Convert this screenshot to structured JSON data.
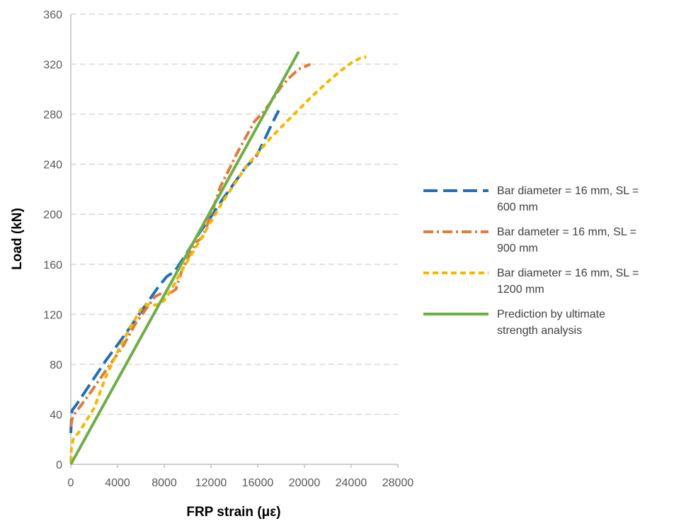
{
  "chart_data": {
    "type": "line",
    "xlabel": "FRP strain (με)",
    "ylabel": "Load (kN)",
    "xlim": [
      0,
      28000
    ],
    "ylim": [
      0,
      360
    ],
    "xticks": [
      0,
      4000,
      8000,
      12000,
      16000,
      20000,
      24000,
      28000
    ],
    "yticks": [
      0,
      40,
      80,
      120,
      160,
      200,
      240,
      280,
      320,
      360
    ],
    "grid": "horizontal dashed",
    "legend": "right",
    "series": [
      {
        "name": "Bar diameter = 16 mm, SL = 600 mm",
        "legend_lines": [
          "Bar diameter = 16 mm, SL =",
          "600 mm"
        ],
        "color": "#1f6fba",
        "dash": "long-dash",
        "x": [
          0,
          50,
          100,
          500,
          1500,
          3000,
          4500,
          6000,
          7500,
          8200,
          8500,
          8800,
          9300,
          10000,
          11000,
          12000,
          13000,
          14000,
          15000,
          15800,
          16500,
          17200,
          17800
        ],
        "y": [
          25,
          35,
          43,
          48,
          62,
          83,
          102,
          122,
          142,
          150,
          152,
          153,
          160,
          170,
          185,
          198,
          212,
          225,
          238,
          245,
          258,
          272,
          283
        ]
      },
      {
        "name": "Bar dameter = 16 mm, SL = 900 mm",
        "legend_lines": [
          "Bar dameter = 16 mm, SL =",
          "900 mm"
        ],
        "color": "#e07b39",
        "dash": "dash-dot",
        "x": [
          0,
          100,
          300,
          1500,
          3000,
          4500,
          5500,
          6500,
          7200,
          7800,
          8500,
          9000,
          9500,
          10200,
          10800,
          11300,
          11700,
          12200,
          12800,
          13500,
          14300,
          15000,
          15700,
          16500,
          17300,
          18000,
          18800,
          19500,
          20000,
          20500
        ],
        "y": [
          30,
          36,
          40,
          55,
          75,
          95,
          112,
          125,
          134,
          137,
          137,
          140,
          155,
          168,
          178,
          182,
          192,
          205,
          222,
          235,
          250,
          262,
          274,
          282,
          292,
          302,
          310,
          316,
          318,
          320
        ]
      },
      {
        "name": "Bar diameter = 16 mm, SL = 1200 mm",
        "legend_lines": [
          "Bar diameter = 16 mm, SL =",
          "1200 mm"
        ],
        "color": "#f5b800",
        "dash": "short-dash",
        "x": [
          0,
          50,
          200,
          800,
          2000,
          3000,
          4000,
          5000,
          6000,
          6500,
          7000,
          7500,
          8000,
          8500,
          9500,
          11000,
          13000,
          15000,
          17000,
          19000,
          20500,
          22000,
          23000,
          24000,
          24800,
          25300
        ],
        "y": [
          2,
          12,
          20,
          27,
          45,
          70,
          90,
          108,
          124,
          128,
          127,
          128,
          131,
          138,
          155,
          178,
          210,
          238,
          260,
          279,
          293,
          306,
          314,
          321,
          325,
          326
        ]
      },
      {
        "name": "Prediction by ultimate strength analysis",
        "legend_lines": [
          "Prediction by ultimate",
          "strength analysis"
        ],
        "color": "#70ad47",
        "dash": "solid",
        "x": [
          0,
          19500
        ],
        "y": [
          0,
          330
        ]
      }
    ]
  }
}
